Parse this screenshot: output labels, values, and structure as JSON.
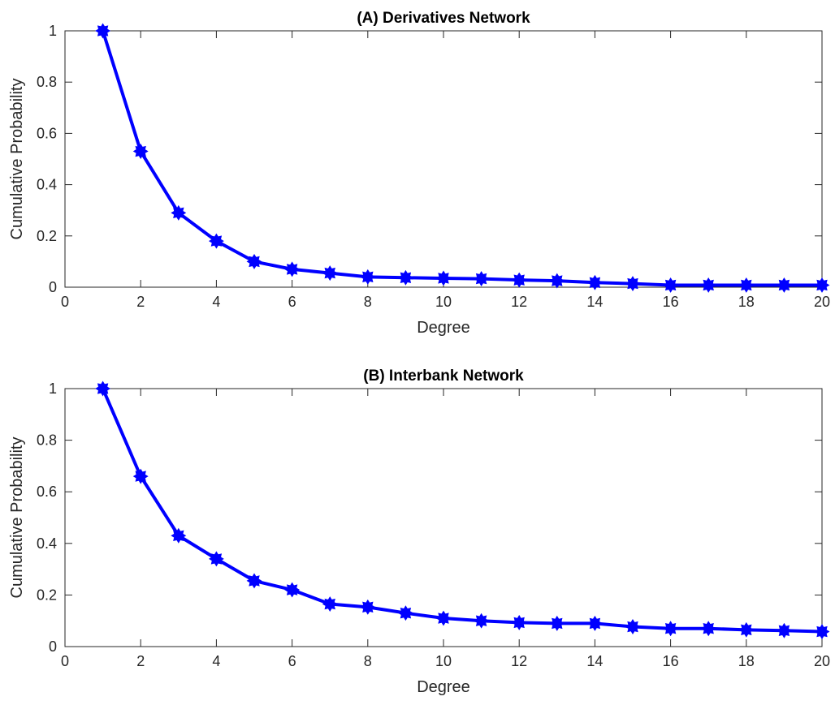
{
  "chart_data": [
    {
      "type": "line",
      "title": "(A) Derivatives Network",
      "xlabel": "Degree",
      "ylabel": "Cumulative Probability",
      "xlim": [
        0,
        20
      ],
      "ylim": [
        0,
        1
      ],
      "xticks": [
        0,
        2,
        4,
        6,
        8,
        10,
        12,
        14,
        16,
        18,
        20
      ],
      "yticks": [
        0,
        0.2,
        0.4,
        0.6,
        0.8,
        1
      ],
      "grid": false,
      "color": "#0000ff",
      "series": [
        {
          "x": [
            1,
            2,
            3,
            4,
            5,
            6,
            7,
            8,
            9,
            10,
            11,
            12,
            13,
            14,
            15,
            16,
            17,
            18,
            19,
            20
          ],
          "y": [
            1.0,
            0.53,
            0.29,
            0.18,
            0.1,
            0.07,
            0.055,
            0.04,
            0.037,
            0.035,
            0.033,
            0.028,
            0.025,
            0.018,
            0.014,
            0.008,
            0.008,
            0.008,
            0.008,
            0.008
          ]
        }
      ]
    },
    {
      "type": "line",
      "title": "(B) Interbank Network",
      "xlabel": "Degree",
      "ylabel": "Cumulative Probability",
      "xlim": [
        0,
        20
      ],
      "ylim": [
        0,
        1
      ],
      "xticks": [
        0,
        2,
        4,
        6,
        8,
        10,
        12,
        14,
        16,
        18,
        20
      ],
      "yticks": [
        0,
        0.2,
        0.4,
        0.6,
        0.8,
        1
      ],
      "grid": false,
      "color": "#0000ff",
      "series": [
        {
          "x": [
            1,
            2,
            3,
            4,
            5,
            6,
            7,
            8,
            9,
            10,
            11,
            12,
            13,
            14,
            15,
            16,
            17,
            18,
            19,
            20
          ],
          "y": [
            1.0,
            0.66,
            0.43,
            0.34,
            0.255,
            0.22,
            0.165,
            0.153,
            0.13,
            0.11,
            0.1,
            0.093,
            0.09,
            0.09,
            0.077,
            0.07,
            0.07,
            0.065,
            0.062,
            0.058
          ]
        }
      ]
    }
  ]
}
